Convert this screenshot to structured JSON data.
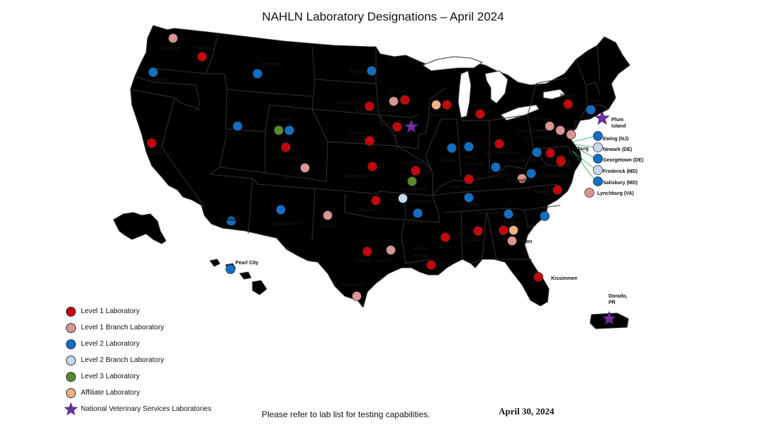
{
  "title": "NAHLN Laboratory Designations – April 2024",
  "colors": {
    "land": "#d9d2bf",
    "border": "#333333",
    "level1": "#c8000a",
    "level1_branch": "#d99694",
    "level2": "#0f6fc6",
    "level2_branch": "#c6d9f1",
    "level3": "#5a8a2e",
    "affiliate": "#f4b183",
    "nvsl": "#7030a0",
    "connector": "#22aa44"
  },
  "legend": [
    {
      "category": "level1",
      "shape": "circle",
      "label": "Level 1 Laboratory"
    },
    {
      "category": "level1_branch",
      "shape": "circle",
      "label": "Level 1 Branch Laboratory"
    },
    {
      "category": "level2",
      "shape": "circle",
      "label": "Level 2 Laboratory"
    },
    {
      "category": "level2_branch",
      "shape": "circle",
      "label": "Level 2 Branch Laboratory"
    },
    {
      "category": "level3",
      "shape": "circle",
      "label": "Level 3 Laboratory"
    },
    {
      "category": "affiliate",
      "shape": "circle",
      "label": "Affiliate Laboratory"
    },
    {
      "category": "nvsl",
      "shape": "star",
      "label": "National Veterinary Services Laboratories"
    }
  ],
  "labs": [
    {
      "name": "Puyallup",
      "category": "level1_branch"
    },
    {
      "name": "Pullman",
      "category": "level1"
    },
    {
      "name": "Corvallis",
      "category": "level2"
    },
    {
      "name": "Bozeman",
      "category": "level2"
    },
    {
      "name": "Fargo",
      "category": "level2"
    },
    {
      "name": "St. Paul",
      "category": "level1"
    },
    {
      "name": "Willmar",
      "category": "level1_branch"
    },
    {
      "name": "Madison",
      "category": "affiliate"
    },
    {
      "name": "Madison",
      "category": "level1"
    },
    {
      "name": "Lansing",
      "category": "level1"
    },
    {
      "name": "Ithaca",
      "category": "level1"
    },
    {
      "name": "Storrs",
      "category": "level2"
    },
    {
      "name": "Plum Island",
      "category": "nvsl"
    },
    {
      "name": "Brookings",
      "category": "level1"
    },
    {
      "name": "Ames",
      "category": "level1"
    },
    {
      "name": "Ames",
      "category": "nvsl"
    },
    {
      "name": "Laramie",
      "category": "level3"
    },
    {
      "name": "Laramie",
      "category": "level2"
    },
    {
      "name": "Logan",
      "category": "level2"
    },
    {
      "name": "Davis",
      "category": "level1"
    },
    {
      "name": "Fort Collins",
      "category": "level1"
    },
    {
      "name": "Rocky Ford",
      "category": "level1_branch"
    },
    {
      "name": "Lincoln",
      "category": "level1"
    },
    {
      "name": "Manhattan",
      "category": "level1"
    },
    {
      "name": "Columbia",
      "category": "level1"
    },
    {
      "name": "Springfield",
      "category": "level3"
    },
    {
      "name": "Fayetteville",
      "category": "level2_branch"
    },
    {
      "name": "Urbana",
      "category": "level2"
    },
    {
      "name": "West Lafayette",
      "category": "level2"
    },
    {
      "name": "Reynoldsburg",
      "category": "level1"
    },
    {
      "name": "Lexington",
      "category": "level2"
    },
    {
      "name": "Hopkinsville",
      "category": "level1"
    },
    {
      "name": "Harrisburg",
      "category": "level1_branch"
    },
    {
      "name": "University Park",
      "category": "level1_branch"
    },
    {
      "name": "Kennett Square",
      "category": "level1"
    },
    {
      "name": "Kennett Square",
      "category": "level1_branch"
    },
    {
      "name": "Moorefield",
      "category": "level2"
    },
    {
      "name": "Harrisonburg",
      "category": "level1"
    },
    {
      "name": "Gaithersburg",
      "category": "level1"
    },
    {
      "name": "Blacksburg",
      "category": "level2"
    },
    {
      "name": "Wytheville",
      "category": "level1_branch"
    },
    {
      "name": "Raleigh",
      "category": "level1"
    },
    {
      "name": "Lynchburg (VA)",
      "category": "level1_branch"
    },
    {
      "name": "Ewing (NJ)",
      "category": "level2"
    },
    {
      "name": "Newark (DE)",
      "category": "level2_branch"
    },
    {
      "name": "Georgetown (DE)",
      "category": "level2"
    },
    {
      "name": "Frederick (MD)",
      "category": "level2_branch"
    },
    {
      "name": "Salisbury (MD)",
      "category": "level2"
    },
    {
      "name": "Nashville",
      "category": "level2"
    },
    {
      "name": "Stillwater",
      "category": "level1"
    },
    {
      "name": "Little Rock",
      "category": "level2"
    },
    {
      "name": "Canyon",
      "category": "level1_branch"
    },
    {
      "name": "Albuquerque",
      "category": "level2"
    },
    {
      "name": "Tucson",
      "category": "level2"
    },
    {
      "name": "Center",
      "category": "level1_branch"
    },
    {
      "name": "College Station",
      "category": "level1"
    },
    {
      "name": "Gonzales",
      "category": "level1_branch"
    },
    {
      "name": "Baton Rouge",
      "category": "level1"
    },
    {
      "name": "Pearl",
      "category": "level1"
    },
    {
      "name": "Auburn",
      "category": "level1"
    },
    {
      "name": "Gainesville",
      "category": "level2"
    },
    {
      "name": "Athens",
      "category": "level1"
    },
    {
      "name": "Athens",
      "category": "affiliate"
    },
    {
      "name": "Tifton",
      "category": "level1_branch"
    },
    {
      "name": "Columbia",
      "category": "level2"
    },
    {
      "name": "Kissimmee",
      "category": "level1"
    },
    {
      "name": "Pearl City",
      "category": "level2"
    },
    {
      "name": "Dorado, PR",
      "category": "nvsl"
    }
  ],
  "footer_note": "Please refer to lab list for testing capabilities.",
  "date": "April 30, 2024"
}
